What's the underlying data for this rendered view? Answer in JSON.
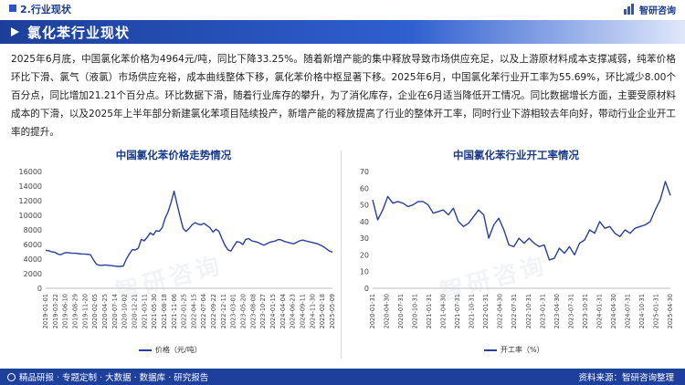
{
  "header": {
    "section_label": "2.行业现状",
    "logo_text": "智研咨询"
  },
  "title_bar": {
    "title": "氯化苯行业现状"
  },
  "paragraph": "2025年6月底，中国氯化苯价格为4964元/吨，同比下降33.25%。随着新增产能的集中释放导致市场供应充足，以及上游原材料成本支撑减弱，纯苯价格环比下滑、氯气（液氯）市场供应充裕，成本曲线整体下移，氯化苯价格中枢显著下移。2025年6月，中国氯化苯行业开工率为55.69%，环比减少8.00个百分点，同比增加21.21个百分点。环比数据下滑，随着行业库存的攀升，为了消化库存，企业在6月适当降低开工情况。同比数据增长方面，主要受原材料成本的下滑，以及2025年上半年部分新建氯化苯项目陆续投产，新增产能的释放提高了行业的整体开工率，同时行业下游相较去年向好，带动行业企业开工率的提升。",
  "colors": {
    "brand": "#1f3f9c",
    "series": "#2a3f9e"
  },
  "watermark": "智研咨询",
  "chart_data": [
    {
      "type": "line",
      "title": "中国氯化苯价格走势情况",
      "xlabel": "",
      "ylabel": "",
      "ylim": [
        0,
        16000
      ],
      "yticks": [
        0,
        2000,
        4000,
        6000,
        8000,
        10000,
        12000,
        14000,
        16000
      ],
      "grid": false,
      "legend": "bottom-center",
      "x_tick_labels": [
        "2019-01-01",
        "2019-03-22",
        "2019-06-10",
        "2019-08-29",
        "2019-11-20",
        "2020-02-05",
        "2020-04-25",
        "2020-07-14",
        "2020-10-02",
        "2020-12-21",
        "2021-03-11",
        "2021-05-30",
        "2021-08-18",
        "2021-11-06",
        "2022-01-25",
        "2022-04-15",
        "2022-07-04",
        "2022-09-22",
        "2022-12-11",
        "2023-03-01",
        "2023-05-20",
        "2023-08-08",
        "2023-10-27",
        "2024-01-15",
        "2024-04-04",
        "2024-06-23",
        "2024-09-11",
        "2024-11-30",
        "2025-02-18",
        "2025-05-09"
      ],
      "series": [
        {
          "name": "价格（元/吨）",
          "values": [
            5200,
            5150,
            5000,
            4950,
            4700,
            4600,
            4800,
            4900,
            4850,
            4800,
            4800,
            4750,
            4700,
            4700,
            4650,
            4600,
            3900,
            3300,
            3150,
            3150,
            3200,
            3150,
            3100,
            3050,
            3000,
            3000,
            3050,
            4000,
            4700,
            5300,
            5250,
            5500,
            6700,
            6500,
            7000,
            7600,
            7300,
            7900,
            7800,
            8300,
            9600,
            10500,
            11800,
            13300,
            11500,
            9800,
            8200,
            7800,
            8200,
            8700,
            9000,
            8800,
            8700,
            8900,
            8600,
            8300,
            7700,
            8100,
            7800,
            6800,
            5900,
            5300,
            5100,
            5800,
            6400,
            6300,
            6000,
            6700,
            6800,
            6500,
            6400,
            6300,
            6100,
            5900,
            6100,
            6300,
            6400,
            6500,
            6700,
            6600,
            6400,
            6300,
            6200,
            6100,
            6300,
            6500,
            6600,
            6500,
            6400,
            6300,
            6200,
            6100,
            5900,
            5700,
            5400,
            5100,
            4964
          ]
        }
      ]
    },
    {
      "type": "line",
      "title": "中国氯化苯行业开工率情况",
      "xlabel": "",
      "ylabel": "",
      "ylim": [
        0,
        70
      ],
      "yticks": [
        0,
        10,
        20,
        30,
        40,
        50,
        60,
        70
      ],
      "grid": false,
      "legend": "bottom-center",
      "x_tick_labels": [
        "2020-01-31",
        "2020-04-30",
        "2020-07-31",
        "2020-10-31",
        "2021-01-31",
        "2021-04-30",
        "2021-07-31",
        "2021-10-31",
        "2022-01-31",
        "2022-04-30",
        "2022-07-31",
        "2022-10-31",
        "2023-01-31",
        "2023-04-30",
        "2023-07-31",
        "2023-10-31",
        "2024-01-31",
        "2024-04-30",
        "2024-07-31",
        "2024-10-31",
        "2025-01-31",
        "2025-04-30"
      ],
      "series": [
        {
          "name": "开工率（%）",
          "values": [
            53,
            41,
            47,
            55,
            51,
            52,
            51,
            49,
            50,
            52,
            52,
            50,
            45,
            46,
            47,
            44,
            48,
            40,
            37,
            39,
            43,
            47,
            44,
            30,
            38,
            42,
            35,
            26,
            25,
            30,
            27,
            30,
            27,
            25,
            26,
            17,
            18,
            24,
            21,
            25,
            20,
            27,
            29,
            35,
            33,
            40,
            36,
            37,
            33,
            31,
            35,
            33,
            36,
            37,
            38,
            40,
            47,
            53,
            64,
            55.69
          ]
        }
      ]
    }
  ],
  "footer": {
    "left_text": "精品研报 · 专题定制 · 大数据 · 数据库 · 研究报告",
    "source": "资料来源：智研咨询整理"
  }
}
